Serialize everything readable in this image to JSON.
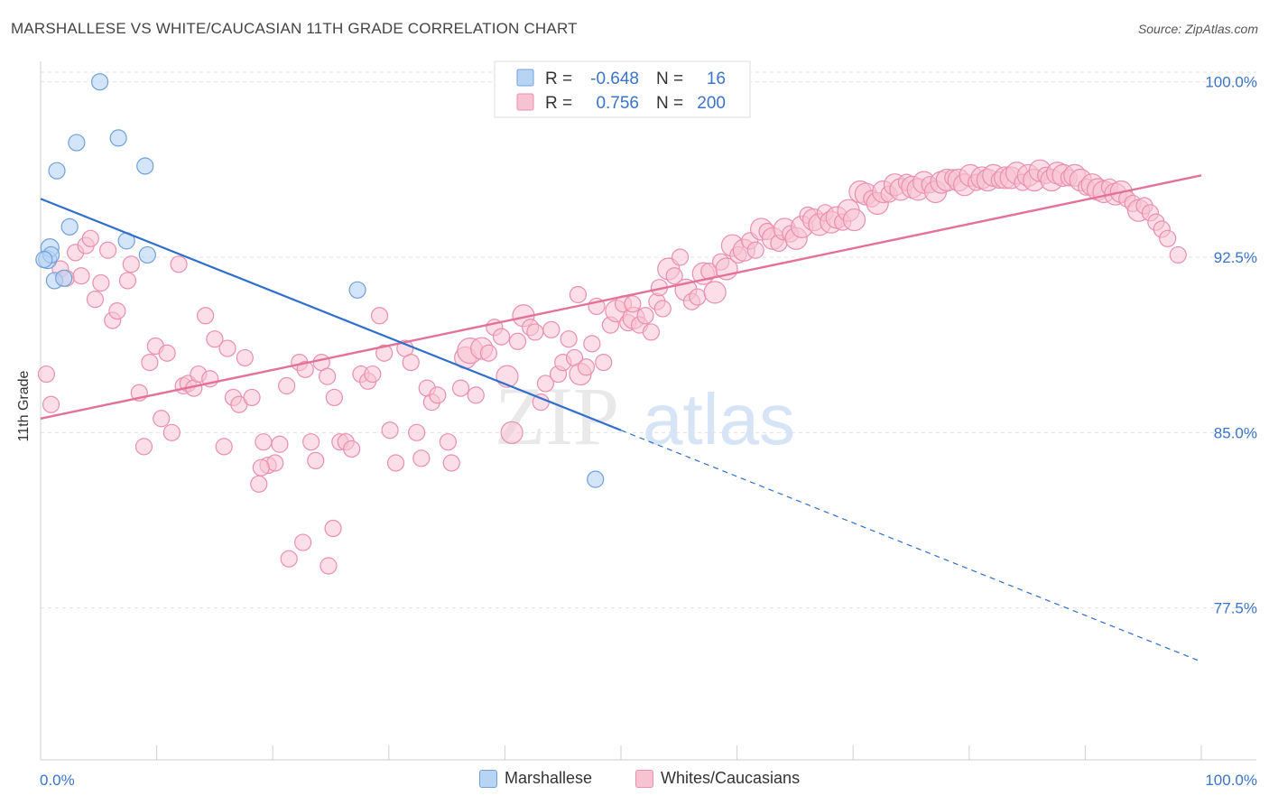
{
  "title": "MARSHALLESE VS WHITE/CAUCASIAN 11TH GRADE CORRELATION CHART",
  "source": "Source: ZipAtlas.com",
  "watermark": {
    "zip": "ZIP",
    "atlas": "atlas"
  },
  "colors": {
    "blue_fill": "#b8d4f5",
    "blue_stroke": "#6fa0dc",
    "blue_line": "#2e6fce",
    "pink_fill": "#f7c3d3",
    "pink_stroke": "#ea8fae",
    "pink_line": "#e4719a",
    "axis_text": "#3a74c9",
    "grid": "#e2e2e2"
  },
  "legend": {
    "rows": [
      {
        "r_label": "R =",
        "r_value": "-0.648",
        "n_label": "N =",
        "n_value": "16"
      },
      {
        "r_label": "R =",
        "r_value": "0.756",
        "n_label": "N =",
        "n_value": "200"
      }
    ]
  },
  "bottom_legend": [
    "Marshallese",
    "Whites/Caucasians"
  ],
  "chart_data": {
    "type": "scatter",
    "title": "MARSHALLESE VS WHITE/CAUCASIAN 11TH GRADE CORRELATION CHART",
    "ylabel": "11th Grade",
    "xlabel": "",
    "xlim": [
      0,
      100
    ],
    "ylim": [
      71.0,
      100.8
    ],
    "x_tick_labels": [
      "0.0%",
      "100.0%"
    ],
    "y_ticks": [
      100.0,
      92.5,
      85.0,
      77.5
    ],
    "y_tick_labels": [
      "100.0%",
      "92.5%",
      "85.0%",
      "77.5%"
    ],
    "grid": true,
    "legend_position": "top-center",
    "series": [
      {
        "name": "Marshallese",
        "r": -0.648,
        "n": 16,
        "points": [
          [
            0.6,
            92.4,
            10
          ],
          [
            0.8,
            92.9,
            10
          ],
          [
            0.9,
            92.6,
            9
          ],
          [
            1.2,
            91.5,
            9
          ],
          [
            1.4,
            96.2,
            9
          ],
          [
            2.0,
            91.6,
            9
          ],
          [
            2.5,
            93.8,
            9
          ],
          [
            3.1,
            97.4,
            9
          ],
          [
            5.1,
            100.0,
            9
          ],
          [
            6.7,
            97.6,
            9
          ],
          [
            7.4,
            93.2,
            9
          ],
          [
            9.0,
            96.4,
            9
          ],
          [
            9.2,
            92.6,
            9
          ],
          [
            27.3,
            91.1,
            9
          ],
          [
            47.8,
            83.0,
            9
          ],
          [
            0.3,
            92.4,
            9
          ]
        ],
        "trend": {
          "x0": 0,
          "y0": 95.0,
          "x1": 50,
          "y1": 85.1,
          "dash_to_x": 100,
          "dash_to_y": 75.2
        }
      },
      {
        "name": "Whites/Caucasians",
        "r": 0.756,
        "n": 200,
        "points": [
          [
            0.5,
            87.5,
            9
          ],
          [
            0.9,
            86.2,
            9
          ],
          [
            1.7,
            92.0,
            9
          ],
          [
            2.2,
            91.6,
            9
          ],
          [
            3.0,
            92.7,
            9
          ],
          [
            3.5,
            91.7,
            9
          ],
          [
            3.9,
            93.0,
            9
          ],
          [
            4.3,
            93.3,
            9
          ],
          [
            4.7,
            90.7,
            9
          ],
          [
            5.2,
            91.4,
            9
          ],
          [
            5.8,
            92.8,
            9
          ],
          [
            6.2,
            89.8,
            9
          ],
          [
            6.6,
            90.2,
            9
          ],
          [
            7.5,
            91.5,
            9
          ],
          [
            7.8,
            92.2,
            9
          ],
          [
            8.5,
            86.7,
            9
          ],
          [
            8.9,
            84.4,
            9
          ],
          [
            9.4,
            88.0,
            9
          ],
          [
            9.9,
            88.7,
            9
          ],
          [
            10.4,
            85.6,
            9
          ],
          [
            10.9,
            88.4,
            9
          ],
          [
            11.3,
            85.0,
            9
          ],
          [
            11.9,
            92.2,
            9
          ],
          [
            12.3,
            87.0,
            9
          ],
          [
            12.7,
            87.1,
            9
          ],
          [
            13.2,
            86.9,
            9
          ],
          [
            13.6,
            87.5,
            9
          ],
          [
            14.2,
            90.0,
            9
          ],
          [
            14.6,
            87.3,
            9
          ],
          [
            15.0,
            89.0,
            9
          ],
          [
            15.8,
            84.4,
            9
          ],
          [
            16.1,
            88.6,
            9
          ],
          [
            16.6,
            86.5,
            9
          ],
          [
            17.1,
            86.2,
            9
          ],
          [
            17.6,
            88.2,
            9
          ],
          [
            18.2,
            86.5,
            9
          ],
          [
            18.8,
            82.8,
            9
          ],
          [
            19.2,
            84.6,
            9
          ],
          [
            19.6,
            83.6,
            9
          ],
          [
            20.2,
            83.7,
            9
          ],
          [
            20.6,
            84.5,
            9
          ],
          [
            21.2,
            87.0,
            9
          ],
          [
            22.3,
            88.0,
            9
          ],
          [
            22.8,
            87.7,
            9
          ],
          [
            23.3,
            84.6,
            9
          ],
          [
            23.7,
            83.8,
            9
          ],
          [
            24.2,
            88.0,
            9
          ],
          [
            24.7,
            87.4,
            9
          ],
          [
            25.3,
            86.5,
            9
          ],
          [
            25.8,
            84.6,
            9
          ],
          [
            26.3,
            84.6,
            9
          ],
          [
            26.8,
            84.3,
            9
          ],
          [
            27.6,
            87.5,
            9
          ],
          [
            28.2,
            87.2,
            9
          ],
          [
            28.6,
            87.5,
            9
          ],
          [
            29.2,
            90.0,
            9
          ],
          [
            29.6,
            88.4,
            9
          ],
          [
            30.1,
            85.1,
            9
          ],
          [
            30.6,
            83.7,
            9
          ],
          [
            31.4,
            88.6,
            9
          ],
          [
            31.9,
            88.0,
            9
          ],
          [
            32.4,
            85.0,
            9
          ],
          [
            32.8,
            83.9,
            9
          ],
          [
            33.3,
            86.9,
            9
          ],
          [
            33.7,
            86.3,
            9
          ],
          [
            34.2,
            86.6,
            9
          ],
          [
            35.1,
            84.6,
            9
          ],
          [
            35.4,
            83.7,
            9
          ],
          [
            36.2,
            86.9,
            9
          ],
          [
            36.6,
            88.2,
            12
          ],
          [
            37.0,
            88.5,
            14
          ],
          [
            37.5,
            86.6,
            9
          ],
          [
            38.0,
            88.6,
            12
          ],
          [
            38.6,
            88.4,
            9
          ],
          [
            39.1,
            89.5,
            9
          ],
          [
            39.7,
            89.1,
            9
          ],
          [
            40.2,
            87.4,
            12
          ],
          [
            40.6,
            85.0,
            12
          ],
          [
            41.1,
            88.9,
            9
          ],
          [
            41.6,
            90.0,
            12
          ],
          [
            42.2,
            89.5,
            9
          ],
          [
            42.6,
            89.3,
            9
          ],
          [
            43.1,
            86.3,
            9
          ],
          [
            43.5,
            87.1,
            9
          ],
          [
            44.0,
            89.4,
            9
          ],
          [
            44.6,
            87.5,
            9
          ],
          [
            45.0,
            88.0,
            9
          ],
          [
            45.5,
            89.0,
            9
          ],
          [
            46.0,
            88.2,
            9
          ],
          [
            46.5,
            87.5,
            12
          ],
          [
            47.0,
            87.8,
            9
          ],
          [
            47.5,
            88.8,
            9
          ],
          [
            47.9,
            90.4,
            9
          ],
          [
            48.5,
            88.0,
            9
          ],
          [
            49.1,
            89.6,
            9
          ],
          [
            49.6,
            90.2,
            12
          ],
          [
            50.2,
            90.5,
            9
          ],
          [
            50.6,
            89.7,
            9
          ],
          [
            51.1,
            89.9,
            12
          ],
          [
            51.6,
            89.6,
            9
          ],
          [
            52.1,
            90.0,
            9
          ],
          [
            52.6,
            89.3,
            9
          ],
          [
            53.1,
            90.6,
            9
          ],
          [
            53.6,
            90.3,
            9
          ],
          [
            54.1,
            92.0,
            12
          ],
          [
            54.6,
            91.7,
            9
          ],
          [
            55.1,
            92.5,
            9
          ],
          [
            55.6,
            91.1,
            12
          ],
          [
            56.1,
            90.6,
            9
          ],
          [
            56.6,
            90.8,
            9
          ],
          [
            57.1,
            91.8,
            12
          ],
          [
            57.6,
            91.9,
            9
          ],
          [
            58.1,
            91.0,
            12
          ],
          [
            58.6,
            92.3,
            9
          ],
          [
            59.1,
            92.0,
            12
          ],
          [
            59.6,
            93.0,
            12
          ],
          [
            60.1,
            92.6,
            9
          ],
          [
            60.6,
            92.8,
            12
          ],
          [
            61.1,
            93.2,
            9
          ],
          [
            61.6,
            92.8,
            9
          ],
          [
            62.1,
            93.7,
            12
          ],
          [
            62.6,
            93.6,
            9
          ],
          [
            63.1,
            93.3,
            12
          ],
          [
            63.6,
            93.1,
            9
          ],
          [
            64.1,
            93.7,
            12
          ],
          [
            64.6,
            93.5,
            9
          ],
          [
            65.1,
            93.3,
            12
          ],
          [
            65.6,
            93.8,
            12
          ],
          [
            66.1,
            94.3,
            9
          ],
          [
            66.6,
            94.1,
            12
          ],
          [
            67.1,
            93.9,
            12
          ],
          [
            67.6,
            94.4,
            9
          ],
          [
            68.1,
            94.0,
            12
          ],
          [
            68.6,
            94.2,
            12
          ],
          [
            69.1,
            94.0,
            9
          ],
          [
            69.6,
            94.5,
            12
          ],
          [
            70.1,
            94.1,
            12
          ],
          [
            70.6,
            95.3,
            12
          ],
          [
            71.1,
            95.2,
            12
          ],
          [
            71.6,
            95.0,
            9
          ],
          [
            72.1,
            94.8,
            12
          ],
          [
            72.6,
            95.3,
            12
          ],
          [
            73.1,
            95.2,
            9
          ],
          [
            73.6,
            95.6,
            12
          ],
          [
            74.1,
            95.4,
            12
          ],
          [
            74.6,
            95.7,
            9
          ],
          [
            75.1,
            95.5,
            12
          ],
          [
            75.6,
            95.4,
            12
          ],
          [
            76.1,
            95.7,
            12
          ],
          [
            76.6,
            95.6,
            9
          ],
          [
            77.1,
            95.3,
            12
          ],
          [
            77.6,
            95.7,
            12
          ],
          [
            78.1,
            95.8,
            12
          ],
          [
            78.6,
            95.9,
            9
          ],
          [
            79.1,
            95.8,
            12
          ],
          [
            79.6,
            95.6,
            12
          ],
          [
            80.1,
            96.0,
            12
          ],
          [
            80.6,
            95.7,
            9
          ],
          [
            81.1,
            95.9,
            12
          ],
          [
            81.6,
            95.8,
            12
          ],
          [
            82.1,
            96.0,
            12
          ],
          [
            82.6,
            95.8,
            9
          ],
          [
            83.1,
            95.9,
            12
          ],
          [
            83.6,
            95.9,
            12
          ],
          [
            84.1,
            96.1,
            12
          ],
          [
            84.6,
            95.7,
            9
          ],
          [
            85.1,
            96.0,
            12
          ],
          [
            85.6,
            95.8,
            12
          ],
          [
            86.1,
            96.2,
            12
          ],
          [
            86.6,
            96.0,
            9
          ],
          [
            87.1,
            95.8,
            12
          ],
          [
            87.6,
            96.1,
            12
          ],
          [
            88.1,
            96.0,
            12
          ],
          [
            88.6,
            95.9,
            9
          ],
          [
            89.1,
            96.0,
            12
          ],
          [
            89.6,
            95.8,
            12
          ],
          [
            90.1,
            95.5,
            9
          ],
          [
            90.6,
            95.6,
            12
          ],
          [
            91.1,
            95.4,
            12
          ],
          [
            91.6,
            95.3,
            12
          ],
          [
            92.1,
            95.5,
            9
          ],
          [
            92.6,
            95.2,
            12
          ],
          [
            93.1,
            95.3,
            12
          ],
          [
            93.6,
            95.0,
            9
          ],
          [
            94.1,
            94.8,
            9
          ],
          [
            94.6,
            94.5,
            12
          ],
          [
            95.1,
            94.7,
            9
          ],
          [
            95.6,
            94.4,
            9
          ],
          [
            96.1,
            94.0,
            9
          ],
          [
            96.6,
            93.7,
            9
          ],
          [
            97.1,
            93.3,
            9
          ],
          [
            98.0,
            92.6,
            9
          ],
          [
            51.0,
            90.5,
            9
          ],
          [
            53.3,
            91.2,
            9
          ],
          [
            46.3,
            90.9,
            9
          ],
          [
            24.8,
            79.3,
            9
          ],
          [
            25.2,
            80.9,
            9
          ],
          [
            21.4,
            79.6,
            9
          ],
          [
            22.6,
            80.3,
            9
          ],
          [
            19.0,
            83.5,
            9
          ]
        ],
        "trend": {
          "x0": 0,
          "y0": 85.6,
          "x1": 100,
          "y1": 96.0
        }
      }
    ]
  }
}
